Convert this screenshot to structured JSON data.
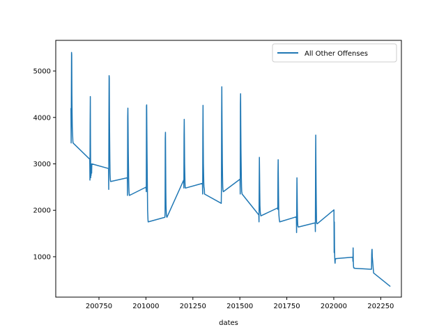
{
  "chart_data": {
    "type": "line",
    "title": "",
    "xlabel": "dates",
    "ylabel": "",
    "xlim": [
      200520,
      202360
    ],
    "ylim": [
      130,
      5660
    ],
    "x_ticks": [
      200750,
      201000,
      201250,
      201500,
      201750,
      202000,
      202250
    ],
    "x_tick_labels": [
      "200750",
      "201000",
      "201250",
      "201500",
      "201750",
      "202000",
      "202250"
    ],
    "y_ticks": [
      1000,
      2000,
      3000,
      4000,
      5000
    ],
    "y_tick_labels": [
      "1000",
      "2000",
      "3000",
      "4000",
      "5000"
    ],
    "grid": false,
    "legend_position": "top-right",
    "colors": {
      "series": "#1f77b4",
      "axes": "#000000",
      "background": "#ffffff"
    },
    "series": [
      {
        "name": "All Other Offenses",
        "x": [
          200601,
          200602,
          200603,
          200604,
          200605,
          200606,
          200607,
          200608,
          200609,
          200610,
          200611,
          200612,
          200701,
          200702,
          200703,
          200704,
          200705,
          200706,
          200707,
          200708,
          200709,
          200710,
          200711,
          200712,
          200801,
          200802,
          200803,
          200804,
          200805,
          200806,
          200807,
          200808,
          200809,
          200810,
          200811,
          200812,
          200901,
          200902,
          200903,
          200904,
          200905,
          200906,
          200907,
          200908,
          200909,
          200910,
          200911,
          200912,
          201001,
          201002,
          201003,
          201004,
          201005,
          201006,
          201007,
          201008,
          201009,
          201010,
          201011,
          201012,
          201101,
          201102,
          201103,
          201104,
          201105,
          201106,
          201107,
          201108,
          201109,
          201110,
          201111,
          201112,
          201201,
          201202,
          201203,
          201204,
          201205,
          201206,
          201207,
          201208,
          201209,
          201210,
          201211,
          201212,
          201301,
          201302,
          201303,
          201304,
          201305,
          201306,
          201307,
          201308,
          201309,
          201310,
          201311,
          201312,
          201401,
          201402,
          201403,
          201404,
          201405,
          201406,
          201407,
          201408,
          201409,
          201410,
          201411,
          201412,
          201501,
          201502,
          201503,
          201504,
          201505,
          201506,
          201507,
          201508,
          201509,
          201510,
          201511,
          201512,
          201601,
          201602,
          201603,
          201604,
          201605,
          201606,
          201607,
          201608,
          201609,
          201610,
          201611,
          201612,
          201701,
          201702,
          201703,
          201704,
          201705,
          201706,
          201707,
          201708,
          201709,
          201710,
          201711,
          201712,
          201801,
          201802,
          201803,
          201804,
          201805,
          201806,
          201807,
          201808,
          201809,
          201810,
          201811,
          201812,
          201901,
          201902,
          201903,
          201904,
          201905,
          201906,
          201907,
          201908,
          201909,
          201910,
          201911,
          201912,
          202001,
          202002,
          202003,
          202004,
          202005,
          202006,
          202007,
          202008,
          202009,
          202010,
          202011,
          202012,
          202101,
          202102,
          202103,
          202104,
          202105,
          202106,
          202107,
          202108,
          202109,
          202110,
          202111,
          202112,
          202201,
          202202,
          202203,
          202204,
          202205,
          202206,
          202207,
          202208,
          202209,
          202210,
          202211,
          202212,
          202301
        ],
        "y": [
          4200,
          3450,
          4400,
          5400,
          5350,
          4500,
          4100,
          3800,
          3700,
          3600,
          3500,
          3450,
          3100,
          2650,
          3850,
          4450,
          3400,
          2700,
          3000,
          2750,
          2900,
          2800,
          2800,
          3000,
          2900,
          2450,
          4000,
          4900,
          4850,
          4000,
          3500,
          3100,
          2800,
          2700,
          2650,
          2620,
          2700,
          2320,
          4000,
          4200,
          3800,
          3300,
          3000,
          2700,
          2500,
          2400,
          2350,
          2320,
          2500,
          2400,
          4250,
          4270,
          3700,
          3200,
          2800,
          2400,
          2000,
          1900,
          1800,
          1750,
          1850,
          1950,
          3550,
          3680,
          3000,
          2400,
          2100,
          2000,
          1900,
          1870,
          1860,
          1850,
          2650,
          2480,
          3600,
          3960,
          3500,
          3000,
          2800,
          2600,
          2500,
          2480,
          2480,
          2480,
          2580,
          2350,
          3650,
          4260,
          3500,
          3000,
          2800,
          2600,
          2500,
          2480,
          2450,
          2350,
          2150,
          2450,
          4040,
          4660,
          4000,
          3500,
          3000,
          2700,
          2500,
          2450,
          2420,
          2400,
          2670,
          2350,
          4280,
          4510,
          3800,
          3300,
          3000,
          2700,
          2500,
          2400,
          2380,
          2350,
          1900,
          1750,
          2550,
          3140,
          2800,
          2400,
          2100,
          2000,
          1950,
          1920,
          1900,
          1880,
          2050,
          2020,
          2800,
          3090,
          2700,
          2300,
          2000,
          1900,
          1850,
          1800,
          1780,
          1750,
          1860,
          1520,
          2200,
          2700,
          2400,
          2000,
          1800,
          1700,
          1660,
          1650,
          1640,
          1640,
          1730,
          1540,
          2800,
          3620,
          3000,
          2500,
          2100,
          1800,
          1720,
          1720,
          1720,
          1710,
          2010,
          1090,
          1750,
          1200,
          1000,
          900,
          860,
          950,
          950,
          950,
          960,
          960,
          990,
          900,
          1190,
          900,
          800,
          760,
          760,
          760,
          760,
          750,
          750,
          750,
          730,
          1050,
          1150,
          1160,
          1000,
          950,
          900,
          850,
          800,
          750,
          700,
          650,
          360
        ]
      }
    ]
  }
}
